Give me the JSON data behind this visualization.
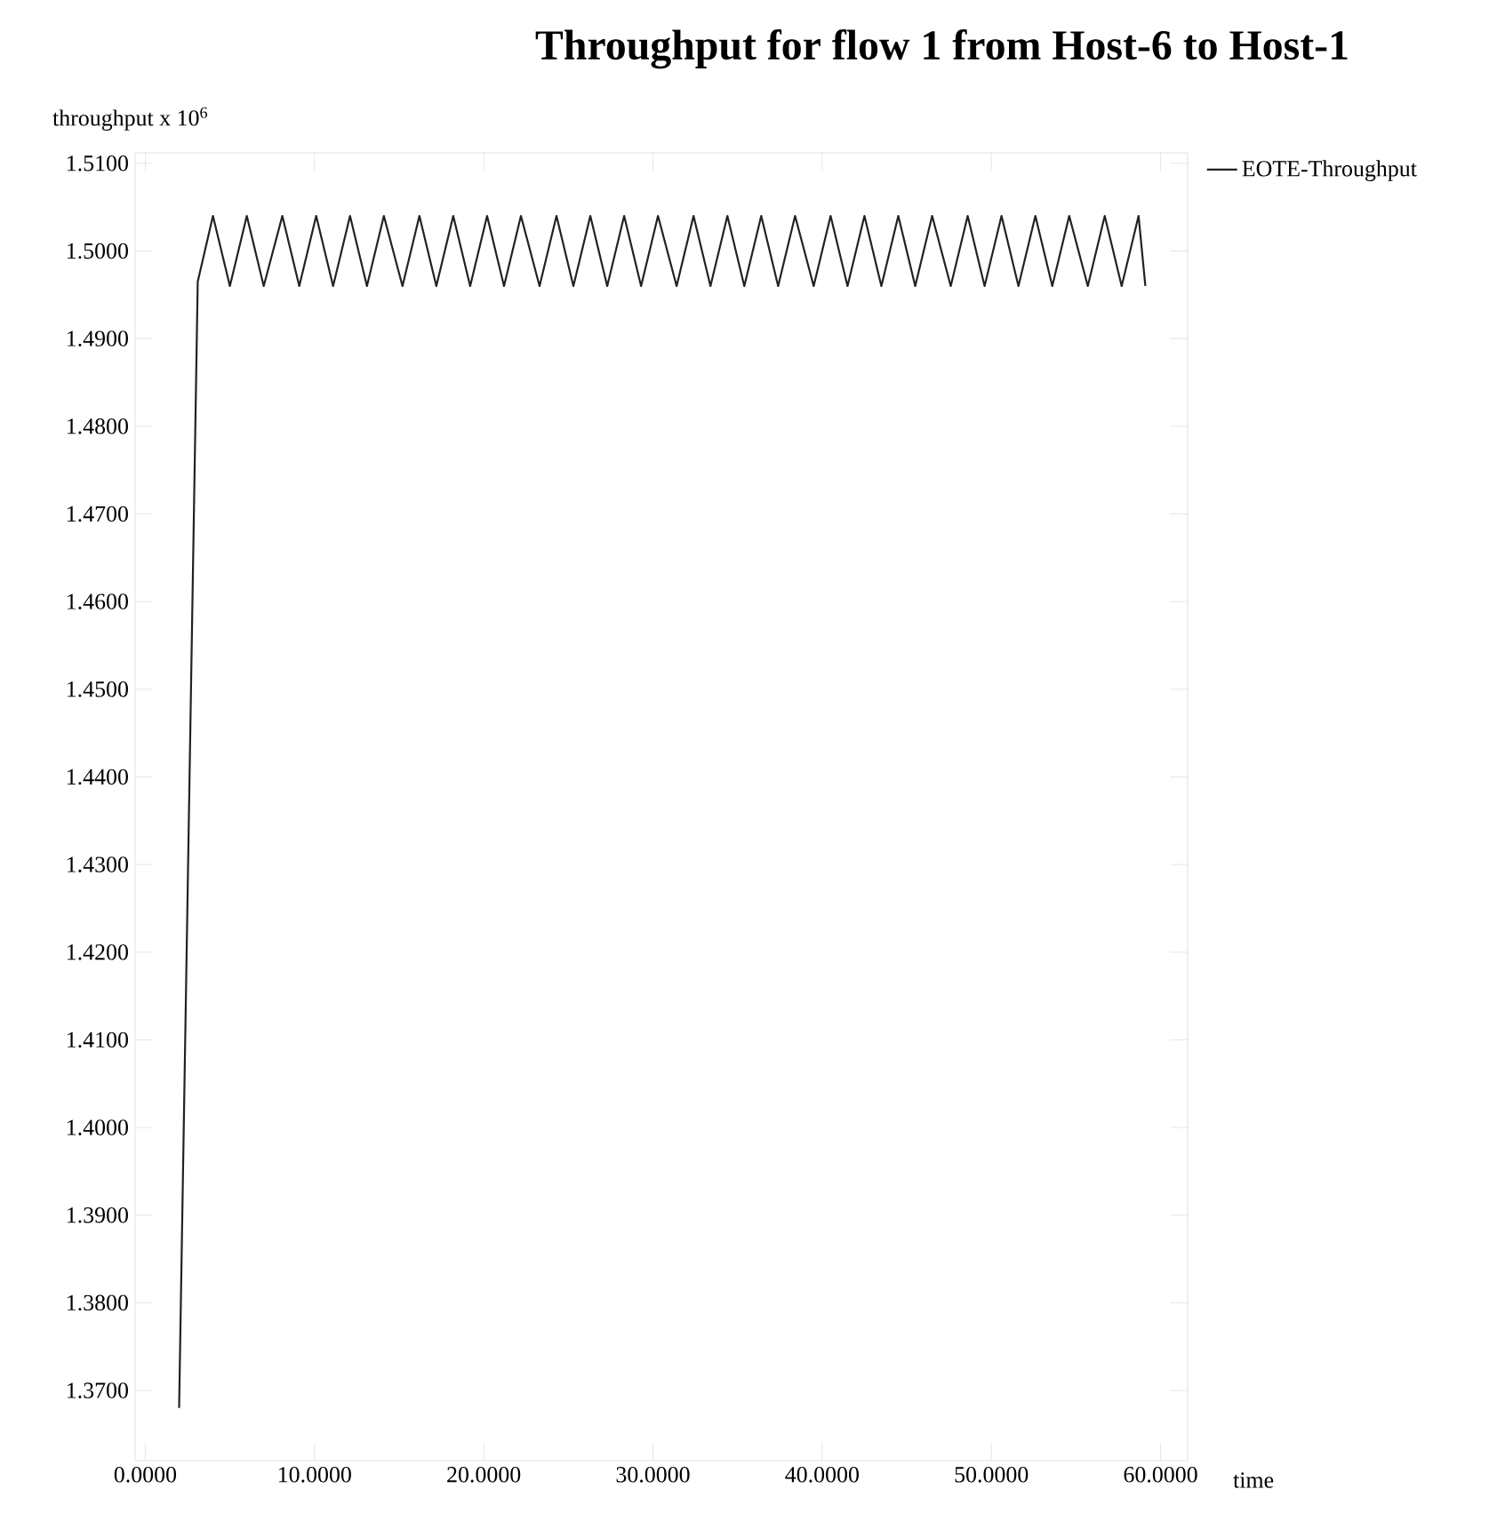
{
  "chart_data": {
    "type": "line",
    "title": "Throughput for flow 1 from Host-6 to Host-1",
    "xlabel": "time",
    "ylabel": "throughput x 10$^{6}$",
    "xlim": [
      -0.6,
      61.6
    ],
    "ylim": [
      1.362,
      1.5112
    ],
    "xticks": [
      {
        "value": 0,
        "label": "0.0000"
      },
      {
        "value": 10,
        "label": "10.0000"
      },
      {
        "value": 20,
        "label": "20.0000"
      },
      {
        "value": 30,
        "label": "30.0000"
      },
      {
        "value": 40,
        "label": "40.0000"
      },
      {
        "value": 50,
        "label": "50.0000"
      },
      {
        "value": 60,
        "label": "60.0000"
      }
    ],
    "yticks": [
      {
        "value": 1.37,
        "label": "1.3700"
      },
      {
        "value": 1.38,
        "label": "1.3800"
      },
      {
        "value": 1.39,
        "label": "1.3900"
      },
      {
        "value": 1.4,
        "label": "1.4000"
      },
      {
        "value": 1.41,
        "label": "1.4100"
      },
      {
        "value": 1.42,
        "label": "1.4200"
      },
      {
        "value": 1.43,
        "label": "1.4300"
      },
      {
        "value": 1.44,
        "label": "1.4400"
      },
      {
        "value": 1.45,
        "label": "1.4500"
      },
      {
        "value": 1.46,
        "label": "1.4600"
      },
      {
        "value": 1.47,
        "label": "1.4700"
      },
      {
        "value": 1.48,
        "label": "1.4800"
      },
      {
        "value": 1.49,
        "label": "1.4900"
      },
      {
        "value": 1.5,
        "label": "1.5000"
      },
      {
        "value": 1.51,
        "label": "1.5100"
      }
    ],
    "legend": "right",
    "series": [
      {
        "name": "EOTE-Throughput",
        "color": "#222222",
        "x": [
          2.0,
          3.1,
          4.0,
          5.0,
          6.0,
          7.0,
          8.1,
          9.1,
          10.1,
          11.1,
          12.1,
          13.1,
          14.1,
          15.2,
          16.2,
          17.2,
          18.2,
          19.2,
          20.2,
          21.2,
          22.2,
          23.3,
          24.3,
          25.3,
          26.3,
          27.3,
          28.3,
          29.3,
          30.3,
          31.4,
          32.4,
          33.4,
          34.4,
          35.4,
          36.4,
          37.4,
          38.4,
          39.5,
          40.5,
          41.5,
          42.5,
          43.5,
          44.5,
          45.5,
          46.5,
          47.6,
          48.6,
          49.6,
          50.6,
          51.6,
          52.6,
          53.6,
          54.6,
          55.7,
          56.7,
          57.7,
          58.7,
          59.1
        ],
        "values": [
          1.368,
          1.4965,
          1.504,
          1.496,
          1.504,
          1.496,
          1.504,
          1.496,
          1.504,
          1.496,
          1.504,
          1.496,
          1.504,
          1.496,
          1.504,
          1.496,
          1.504,
          1.496,
          1.504,
          1.496,
          1.504,
          1.496,
          1.504,
          1.496,
          1.504,
          1.496,
          1.504,
          1.496,
          1.504,
          1.496,
          1.504,
          1.496,
          1.504,
          1.496,
          1.504,
          1.496,
          1.504,
          1.496,
          1.504,
          1.496,
          1.504,
          1.496,
          1.504,
          1.496,
          1.504,
          1.496,
          1.504,
          1.496,
          1.504,
          1.496,
          1.504,
          1.496,
          1.504,
          1.496,
          1.504,
          1.496,
          1.504,
          1.496
        ]
      }
    ]
  }
}
